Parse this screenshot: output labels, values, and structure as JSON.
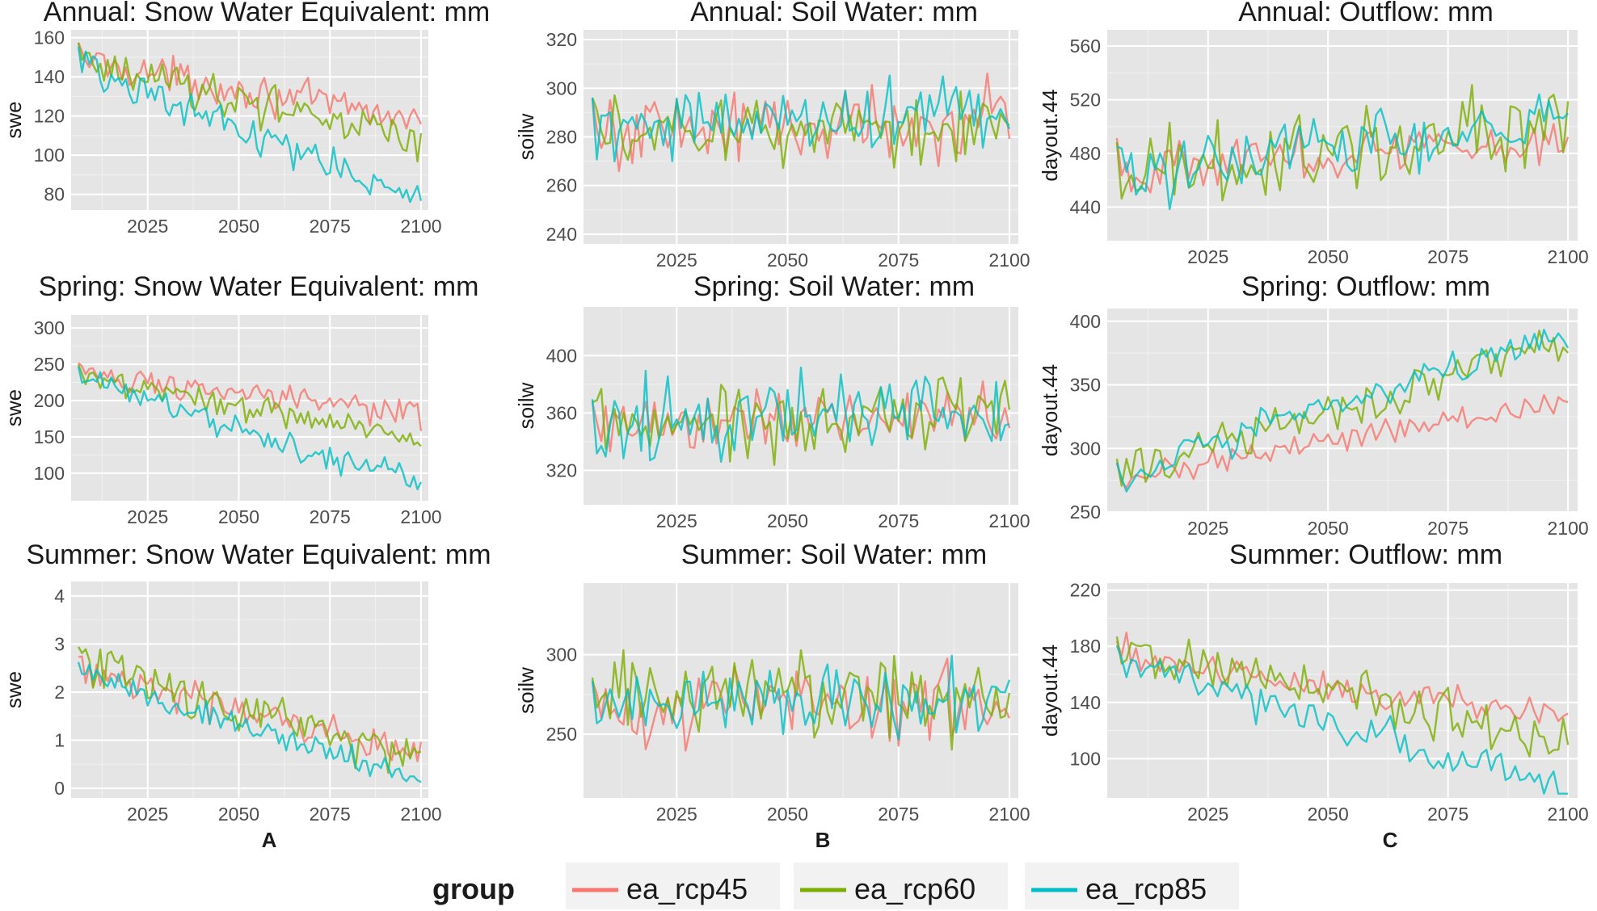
{
  "colors": {
    "panel_bg": "#e5e5e5",
    "grid": "#ffffff",
    "ea_rcp45": "#f8766d",
    "ea_rcp60": "#7cae00",
    "ea_rcp85": "#00bfc4"
  },
  "column_labels": [
    "A",
    "B",
    "C"
  ],
  "legend": {
    "title": "group",
    "items": [
      {
        "label": "ea_rcp45",
        "color": "#f8766d"
      },
      {
        "label": "ea_rcp60",
        "color": "#7cae00"
      },
      {
        "label": "ea_rcp85",
        "color": "#00bfc4"
      }
    ]
  },
  "chart_data": [
    {
      "type": "line",
      "title": "Annual: Snow Water Equivalent: mm",
      "xlabel": "",
      "ylabel": "swe",
      "x_ticks": [
        2025,
        2050,
        2075,
        2100
      ],
      "y_ticks": [
        80,
        100,
        120,
        140,
        160
      ],
      "xlim": [
        2004,
        2102
      ],
      "ylim": [
        72,
        164
      ],
      "grid": true,
      "x_range": [
        2006,
        2100
      ],
      "series": [
        {
          "name": "ea_rcp45",
          "start": 150,
          "end": 118,
          "noise": 7
        },
        {
          "name": "ea_rcp60",
          "start": 150,
          "end": 108,
          "noise": 8
        },
        {
          "name": "ea_rcp85",
          "start": 148,
          "end": 78,
          "noise": 7
        }
      ]
    },
    {
      "type": "line",
      "title": "Annual: Soil Water: mm",
      "xlabel": "",
      "ylabel": "soilw",
      "x_ticks": [
        2025,
        2050,
        2075,
        2100
      ],
      "y_ticks": [
        240,
        260,
        280,
        300,
        320
      ],
      "xlim": [
        2004,
        2102
      ],
      "ylim": [
        236,
        324
      ],
      "grid": true,
      "x_range": [
        2006,
        2100
      ],
      "series": [
        {
          "name": "ea_rcp45",
          "start": 282,
          "end": 288,
          "noise": 12
        },
        {
          "name": "ea_rcp60",
          "start": 282,
          "end": 285,
          "noise": 11
        },
        {
          "name": "ea_rcp85",
          "start": 282,
          "end": 290,
          "noise": 11
        }
      ]
    },
    {
      "type": "line",
      "title": "Annual: Outflow: mm",
      "xlabel": "",
      "ylabel": "dayout.44",
      "x_ticks": [
        2025,
        2050,
        2075,
        2100
      ],
      "y_ticks": [
        440,
        480,
        520,
        560
      ],
      "xlim": [
        2004,
        2102
      ],
      "ylim": [
        415,
        572
      ],
      "grid": true,
      "x_range": [
        2006,
        2100
      ],
      "series": [
        {
          "name": "ea_rcp45",
          "start": 468,
          "end": 490,
          "noise": 15
        },
        {
          "name": "ea_rcp60",
          "start": 465,
          "end": 500,
          "noise": 22
        },
        {
          "name": "ea_rcp85",
          "start": 462,
          "end": 505,
          "noise": 18
        }
      ]
    },
    {
      "type": "line",
      "title": "Spring: Snow Water Equivalent: mm",
      "xlabel": "",
      "ylabel": "swe",
      "x_ticks": [
        2025,
        2050,
        2075,
        2100
      ],
      "y_ticks": [
        100,
        150,
        200,
        250,
        300
      ],
      "xlim": [
        2004,
        2102
      ],
      "ylim": [
        62,
        318
      ],
      "grid": true,
      "x_range": [
        2006,
        2100
      ],
      "series": [
        {
          "name": "ea_rcp45",
          "start": 240,
          "end": 180,
          "noise": 14
        },
        {
          "name": "ea_rcp60",
          "start": 238,
          "end": 150,
          "noise": 15
        },
        {
          "name": "ea_rcp85",
          "start": 235,
          "end": 90,
          "noise": 15
        }
      ]
    },
    {
      "type": "line",
      "title": "Spring: Soil Water: mm",
      "xlabel": "",
      "ylabel": "soilw",
      "x_ticks": [
        2025,
        2050,
        2075,
        2100
      ],
      "y_ticks": [
        320,
        360,
        400
      ],
      "xlim": [
        2004,
        2102
      ],
      "ylim": [
        296,
        434
      ],
      "grid": true,
      "x_range": [
        2006,
        2100
      ],
      "series": [
        {
          "name": "ea_rcp45",
          "start": 350,
          "end": 362,
          "noise": 18
        },
        {
          "name": "ea_rcp60",
          "start": 350,
          "end": 362,
          "noise": 20
        },
        {
          "name": "ea_rcp85",
          "start": 352,
          "end": 365,
          "noise": 22
        }
      ]
    },
    {
      "type": "line",
      "title": "Spring: Outflow: mm",
      "xlabel": "",
      "ylabel": "dayout.44",
      "x_ticks": [
        2025,
        2050,
        2075,
        2100
      ],
      "y_ticks": [
        250,
        300,
        350,
        400
      ],
      "xlim": [
        2004,
        2102
      ],
      "ylim": [
        250,
        410
      ],
      "grid": true,
      "x_range": [
        2006,
        2100
      ],
      "series": [
        {
          "name": "ea_rcp45",
          "start": 275,
          "end": 335,
          "noise": 8
        },
        {
          "name": "ea_rcp60",
          "start": 278,
          "end": 380,
          "noise": 12
        },
        {
          "name": "ea_rcp85",
          "start": 275,
          "end": 390,
          "noise": 11
        }
      ]
    },
    {
      "type": "line",
      "title": "Summer: Snow Water Equivalent: mm",
      "xlabel": "",
      "ylabel": "swe",
      "x_ticks": [
        2025,
        2050,
        2075,
        2100
      ],
      "y_ticks": [
        0,
        1,
        2,
        3,
        4
      ],
      "xlim": [
        2004,
        2102
      ],
      "ylim": [
        -0.2,
        4.3
      ],
      "grid": true,
      "x_range": [
        2006,
        2100
      ],
      "series": [
        {
          "name": "ea_rcp45",
          "start": 2.6,
          "end": 0.7,
          "noise": 0.25
        },
        {
          "name": "ea_rcp60",
          "start": 2.8,
          "end": 0.6,
          "noise": 0.35
        },
        {
          "name": "ea_rcp85",
          "start": 2.5,
          "end": 0.15,
          "noise": 0.2
        }
      ]
    },
    {
      "type": "line",
      "title": "Summer: Soil Water: mm",
      "xlabel": "",
      "ylabel": "soilw",
      "x_ticks": [
        2025,
        2050,
        2075,
        2100
      ],
      "y_ticks": [
        250,
        300
      ],
      "xlim": [
        2004,
        2102
      ],
      "ylim": [
        210,
        345
      ],
      "grid": true,
      "x_range": [
        2006,
        2100
      ],
      "series": [
        {
          "name": "ea_rcp45",
          "start": 270,
          "end": 272,
          "noise": 18
        },
        {
          "name": "ea_rcp60",
          "start": 272,
          "end": 275,
          "noise": 20
        },
        {
          "name": "ea_rcp85",
          "start": 270,
          "end": 272,
          "noise": 16
        }
      ]
    },
    {
      "type": "line",
      "title": "Summer: Outflow: mm",
      "xlabel": "",
      "ylabel": "dayout.44",
      "x_ticks": [
        2025,
        2050,
        2075,
        2100
      ],
      "y_ticks": [
        100,
        140,
        180,
        220
      ],
      "xlim": [
        2004,
        2102
      ],
      "ylim": [
        72,
        225
      ],
      "grid": true,
      "x_range": [
        2006,
        2100
      ],
      "series": [
        {
          "name": "ea_rcp45",
          "start": 175,
          "end": 130,
          "noise": 10
        },
        {
          "name": "ea_rcp60",
          "start": 178,
          "end": 115,
          "noise": 14
        },
        {
          "name": "ea_rcp85",
          "start": 172,
          "end": 80,
          "noise": 10
        }
      ]
    }
  ]
}
